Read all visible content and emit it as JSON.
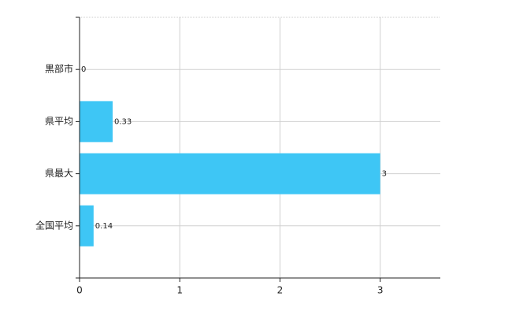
{
  "chart_data": {
    "type": "barh",
    "categories": [
      "黒部市",
      "県平均",
      "県最大",
      "全国平均"
    ],
    "values": [
      0,
      0.33,
      3,
      0.14
    ],
    "color": "#3ec6f5",
    "xlim": [
      0,
      3.6
    ],
    "xticks": [
      0,
      1,
      2,
      3
    ],
    "grid": true
  }
}
